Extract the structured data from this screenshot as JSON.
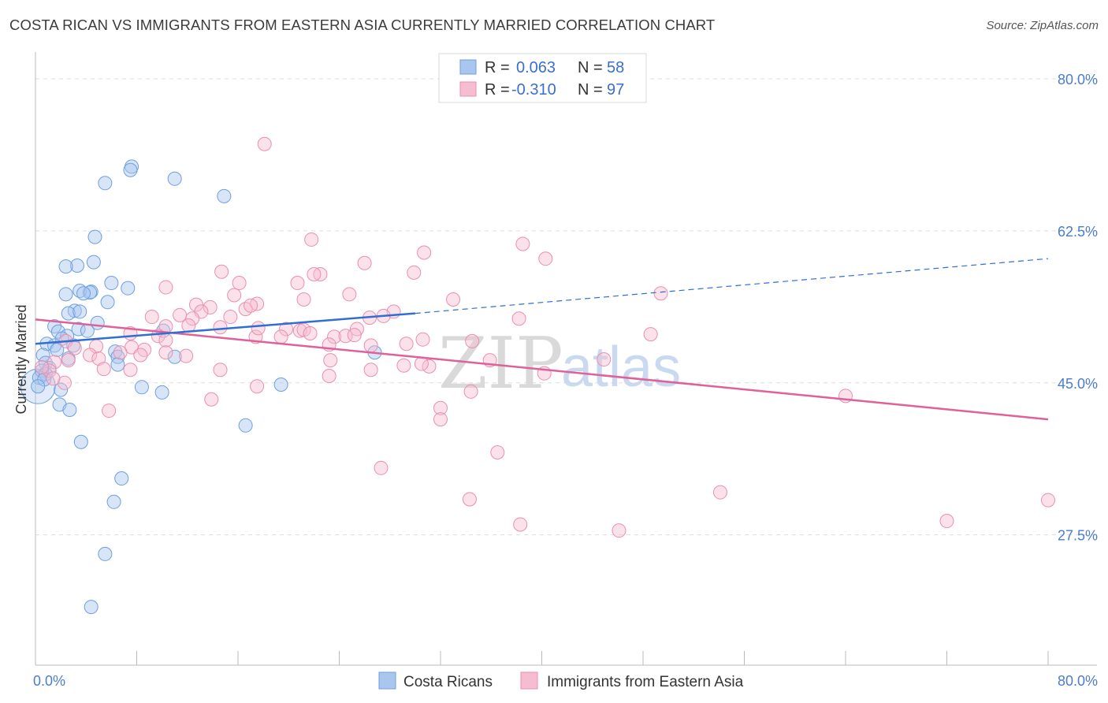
{
  "title": "COSTA RICAN VS IMMIGRANTS FROM EASTERN ASIA CURRENTLY MARRIED CORRELATION CHART",
  "source": "Source: ZipAtlas.com",
  "watermark": {
    "zip": "ZIP",
    "atlas": "atlas"
  },
  "legend_top": [
    {
      "r_label": "R =",
      "r_value": "0.063",
      "n_label": "N =",
      "n_value": "58"
    },
    {
      "r_label": "R =",
      "r_value": "-0.310",
      "n_label": "N =",
      "n_value": "97"
    }
  ],
  "legend_bottom": [
    "Costa Ricans",
    "Immigrants from Eastern Asia"
  ],
  "chart_data": {
    "type": "scatter",
    "ylabel": "Currently Married",
    "xlim": [
      0,
      80
    ],
    "ylim": [
      12.5,
      82
    ],
    "x_tick_labels": [
      "0.0%",
      "80.0%"
    ],
    "y_ticks": [
      27.5,
      45.0,
      62.5,
      80.0
    ],
    "y_tick_labels": [
      "27.5%",
      "45.0%",
      "62.5%",
      "80.0%"
    ],
    "grid": true,
    "colors": {
      "blue": "#a9c6ee",
      "blue_edge": "#6e9fe0",
      "pink": "#f6bcd0",
      "pink_edge": "#ea8fb0",
      "blue_line": "#2f6fd4",
      "pink_line": "#e0609a"
    },
    "series": [
      {
        "name": "Costa Ricans",
        "color": "#a9c6ee",
        "trend": {
          "x": [
            0,
            30
          ],
          "y": [
            49.5,
            53.0
          ],
          "dashed_to": [
            80,
            59.3
          ]
        },
        "points": [
          [
            7.6,
            69.9
          ],
          [
            7.5,
            69.5
          ],
          [
            11.0,
            68.5
          ],
          [
            5.5,
            68.0
          ],
          [
            14.9,
            66.5
          ],
          [
            4.7,
            61.8
          ],
          [
            4.6,
            58.9
          ],
          [
            3.3,
            58.5
          ],
          [
            2.4,
            58.4
          ],
          [
            6.0,
            56.5
          ],
          [
            7.3,
            55.9
          ],
          [
            3.5,
            55.6
          ],
          [
            4.4,
            55.5
          ],
          [
            4.3,
            55.4
          ],
          [
            2.4,
            55.2
          ],
          [
            3.8,
            55.3
          ],
          [
            5.7,
            54.3
          ],
          [
            3.1,
            53.3
          ],
          [
            2.6,
            53.0
          ],
          [
            3.5,
            53.2
          ],
          [
            4.9,
            51.9
          ],
          [
            1.5,
            51.5
          ],
          [
            1.8,
            50.9
          ],
          [
            3.4,
            51.2
          ],
          [
            4.1,
            51.0
          ],
          [
            10.1,
            51.0
          ],
          [
            2.5,
            50.4
          ],
          [
            2.1,
            50.1
          ],
          [
            0.9,
            49.5
          ],
          [
            1.5,
            49.3
          ],
          [
            3.0,
            49.3
          ],
          [
            1.7,
            48.8
          ],
          [
            6.3,
            48.6
          ],
          [
            2.6,
            47.8
          ],
          [
            0.6,
            48.2
          ],
          [
            6.5,
            48.0
          ],
          [
            0.8,
            47.3
          ],
          [
            6.5,
            47.1
          ],
          [
            11.0,
            48.0
          ],
          [
            1.1,
            46.7
          ],
          [
            0.5,
            46.4
          ],
          [
            0.8,
            46.0
          ],
          [
            0.3,
            45.6
          ],
          [
            0.7,
            45.4
          ],
          [
            8.4,
            44.5
          ],
          [
            19.4,
            44.8
          ],
          [
            10.0,
            43.9
          ],
          [
            2.0,
            44.2
          ],
          [
            1.9,
            42.5
          ],
          [
            2.7,
            41.9
          ],
          [
            16.6,
            40.1
          ],
          [
            3.6,
            38.2
          ],
          [
            6.8,
            34.0
          ],
          [
            6.2,
            31.3
          ],
          [
            5.5,
            25.3
          ],
          [
            4.4,
            19.2
          ],
          [
            26.8,
            48.5
          ],
          [
            0.2,
            44.6
          ]
        ]
      },
      {
        "name": "Immigrants from Eastern Asia",
        "color": "#f6bcd0",
        "trend": {
          "x": [
            0,
            80
          ],
          "y": [
            52.3,
            40.8
          ]
        },
        "points": [
          [
            18.1,
            72.5
          ],
          [
            21.8,
            61.5
          ],
          [
            30.7,
            60.0
          ],
          [
            38.5,
            61.0
          ],
          [
            40.3,
            59.3
          ],
          [
            26.0,
            58.8
          ],
          [
            14.7,
            57.8
          ],
          [
            22.5,
            57.5
          ],
          [
            29.9,
            57.7
          ],
          [
            22.0,
            57.5
          ],
          [
            16.1,
            56.5
          ],
          [
            20.7,
            56.5
          ],
          [
            10.3,
            56.0
          ],
          [
            15.7,
            55.1
          ],
          [
            24.8,
            55.2
          ],
          [
            33.0,
            54.6
          ],
          [
            21.2,
            54.6
          ],
          [
            49.4,
            55.3
          ],
          [
            12.7,
            54.0
          ],
          [
            13.8,
            53.7
          ],
          [
            17.5,
            54.1
          ],
          [
            16.6,
            53.5
          ],
          [
            13.1,
            53.2
          ],
          [
            17.0,
            53.9
          ],
          [
            28.3,
            53.2
          ],
          [
            27.5,
            52.7
          ],
          [
            11.4,
            52.8
          ],
          [
            12.4,
            52.4
          ],
          [
            9.2,
            52.6
          ],
          [
            15.4,
            52.6
          ],
          [
            38.2,
            52.4
          ],
          [
            26.4,
            52.5
          ],
          [
            10.3,
            51.5
          ],
          [
            12.1,
            51.6
          ],
          [
            14.6,
            51.4
          ],
          [
            19.8,
            51.2
          ],
          [
            20.9,
            51.0
          ],
          [
            21.2,
            51.1
          ],
          [
            7.5,
            50.7
          ],
          [
            17.4,
            50.3
          ],
          [
            19.4,
            50.3
          ],
          [
            21.7,
            50.7
          ],
          [
            23.6,
            50.3
          ],
          [
            24.5,
            50.4
          ],
          [
            30.6,
            50.0
          ],
          [
            9.7,
            50.4
          ],
          [
            48.6,
            50.6
          ],
          [
            10.3,
            49.9
          ],
          [
            2.4,
            49.8
          ],
          [
            29.3,
            49.5
          ],
          [
            26.5,
            49.3
          ],
          [
            4.8,
            49.2
          ],
          [
            3.1,
            49.0
          ],
          [
            7.6,
            49.1
          ],
          [
            8.6,
            48.8
          ],
          [
            6.7,
            48.5
          ],
          [
            8.3,
            48.2
          ],
          [
            10.3,
            48.5
          ],
          [
            11.9,
            48.1
          ],
          [
            4.3,
            48.2
          ],
          [
            5.0,
            47.8
          ],
          [
            2.6,
            47.6
          ],
          [
            1.5,
            47.4
          ],
          [
            14.6,
            46.5
          ],
          [
            7.5,
            46.5
          ],
          [
            5.4,
            46.6
          ],
          [
            17.5,
            44.6
          ],
          [
            23.2,
            45.8
          ],
          [
            26.5,
            46.5
          ],
          [
            29.1,
            47.0
          ],
          [
            31.1,
            46.9
          ],
          [
            35.9,
            47.6
          ],
          [
            40.2,
            46.1
          ],
          [
            44.9,
            47.7
          ],
          [
            1.1,
            46.4
          ],
          [
            0.5,
            46.8
          ],
          [
            2.3,
            45.0
          ],
          [
            1.4,
            45.5
          ],
          [
            13.9,
            43.1
          ],
          [
            34.4,
            44.0
          ],
          [
            64.0,
            43.5
          ],
          [
            5.8,
            41.8
          ],
          [
            32.0,
            42.1
          ],
          [
            32.0,
            40.8
          ],
          [
            36.5,
            37.0
          ],
          [
            23.3,
            47.6
          ],
          [
            25.4,
            51.2
          ],
          [
            25.2,
            50.5
          ],
          [
            34.5,
            49.8
          ],
          [
            30.5,
            47.2
          ],
          [
            17.6,
            51.3
          ],
          [
            23.2,
            49.4
          ],
          [
            27.3,
            35.2
          ],
          [
            34.3,
            31.6
          ],
          [
            38.3,
            28.7
          ],
          [
            54.1,
            32.4
          ],
          [
            72.0,
            29.1
          ]
        ],
        "extra_points": [
          [
            80.0,
            31.5
          ],
          [
            46.1,
            28.0
          ]
        ]
      }
    ]
  }
}
